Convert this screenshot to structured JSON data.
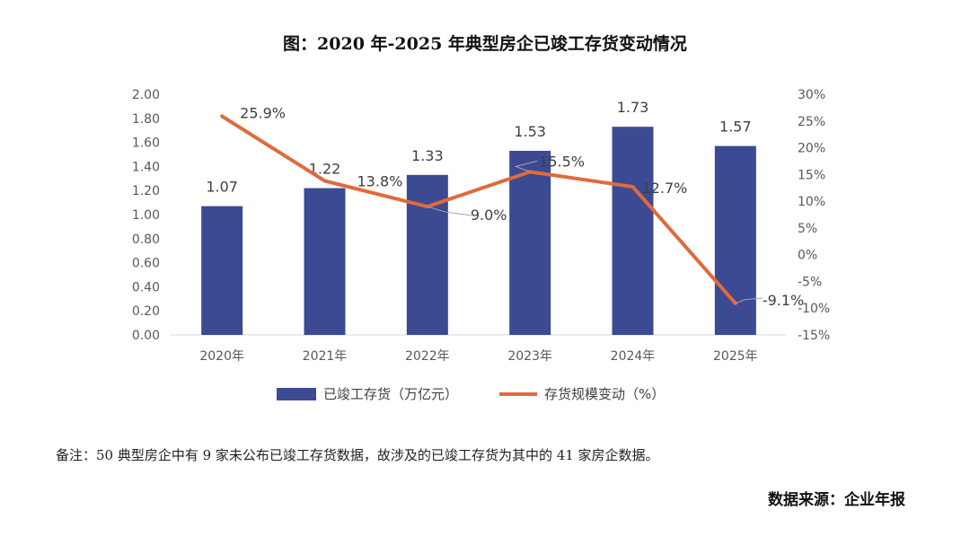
{
  "title": "图：2020 年-2025 年典型房企已竣工存货变动情况",
  "note": "备注：50 典型房企中有 9 家未公布已竣工存货数据，故涉及的已竣工存货为其中的 41 家房企数据。",
  "source": "数据来源：企业年报",
  "chart_data": {
    "type": "bar+line",
    "categories": [
      "2020年",
      "2021年",
      "2022年",
      "2023年",
      "2024年",
      "2025年"
    ],
    "series": [
      {
        "name": "已竣工存货（万亿元）",
        "type": "bar",
        "axis": "left",
        "color": "#3b4a92",
        "values": [
          1.07,
          1.22,
          1.33,
          1.53,
          1.73,
          1.57
        ],
        "labels": [
          "1.07",
          "1.22",
          "1.33",
          "1.53",
          "1.73",
          "1.57"
        ]
      },
      {
        "name": "存货规模变动（%）",
        "type": "line",
        "axis": "right",
        "color": "#e06a3b",
        "values": [
          25.9,
          13.8,
          9.0,
          15.5,
          12.7,
          -9.1
        ],
        "labels": [
          "25.9%",
          "13.8%",
          "9.0%",
          "15.5%",
          "12.7%",
          "-9.1%"
        ]
      }
    ],
    "y_left": {
      "range": [
        0,
        2
      ],
      "ticks": [
        "0.00",
        "0.20",
        "0.40",
        "0.60",
        "0.80",
        "1.00",
        "1.20",
        "1.40",
        "1.60",
        "1.80",
        "2.00"
      ]
    },
    "y_right": {
      "range": [
        -15,
        30
      ],
      "ticks": [
        "-15%",
        "-10%",
        "-5%",
        "0%",
        "5%",
        "10%",
        "15%",
        "20%",
        "25%",
        "30%"
      ]
    },
    "grid": false,
    "legend": "bottom"
  }
}
